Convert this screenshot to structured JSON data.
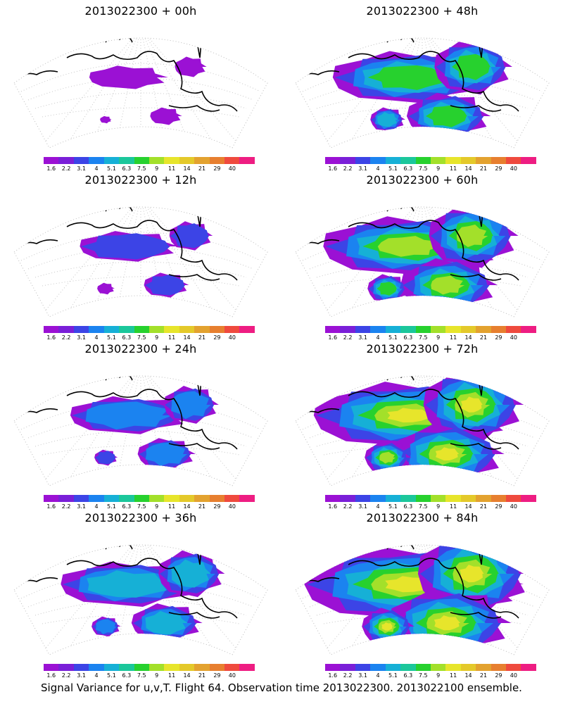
{
  "panels": [
    {
      "title": "2013022300 + 00h"
    },
    {
      "title": "2013022300 + 48h"
    },
    {
      "title": "2013022300 + 12h"
    },
    {
      "title": "2013022300 + 60h"
    },
    {
      "title": "2013022300 + 24h"
    },
    {
      "title": "2013022300 + 72h"
    },
    {
      "title": "2013022300 + 36h"
    },
    {
      "title": "2013022300 + 84h"
    }
  ],
  "colorbar": {
    "colors": [
      "#9b11d4",
      "#7a1fd8",
      "#3c44e6",
      "#1b83f0",
      "#16b0d6",
      "#1bc79b",
      "#27d12e",
      "#a3e02a",
      "#e7e52b",
      "#e4c92a",
      "#e3a22f",
      "#e77f2f",
      "#ef4a3e",
      "#ee1d82"
    ],
    "tick_labels": [
      "1.6",
      "2.2",
      "3.1",
      "4",
      "5.1",
      "6.3",
      "7.5",
      "9",
      "11",
      "14",
      "21",
      "29",
      "40"
    ]
  },
  "footer": "Signal Variance for u,v,T. Flight 64. Observation time 2013022300. 2013022100 ensemble."
}
